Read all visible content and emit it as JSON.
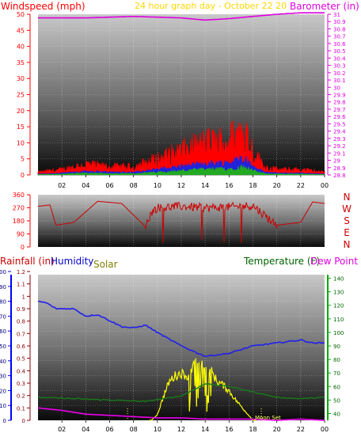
{
  "colors": {
    "windspeed": "#ff0000",
    "title": "#ffd700",
    "barometer": "#dd00dd",
    "direction": "#cc0000",
    "rainfall": "#cc0000",
    "humidity": "#0000cc",
    "solar": "#808000",
    "temperature": "#006400",
    "dewpoint": "#dd00dd",
    "solar_trace": "#ffff00",
    "humidity_trace": "#2020ee",
    "temp_trace": "#1a7a1a",
    "dew_trace": "#ee00ee",
    "axis_blue": "#0000ff",
    "axis_green": "#00aa00",
    "tick": "#000000"
  },
  "header": {
    "wind_label": "Windspeed (mph)",
    "title": "24 hour graph day - October 22 20",
    "baro_label": "Barometer (in)"
  },
  "chart_data": [
    {
      "type": "line",
      "name": "wind-barometer",
      "x_tick_labels": [
        "02",
        "04",
        "06",
        "08",
        "10",
        "12",
        "14",
        "16",
        "18",
        "20",
        "22",
        "00"
      ],
      "y_left_ticks": [
        "0",
        "5",
        "10",
        "15",
        "20",
        "25",
        "30",
        "35",
        "40",
        "45",
        "50"
      ],
      "y_right_ticks": [
        "28.8",
        "28.9",
        "29",
        "29.1",
        "29.2",
        "29.3",
        "29.4",
        "29.5",
        "29.6",
        "29.7",
        "29.8",
        "29.9",
        "30",
        "30.1",
        "30.2",
        "30.3",
        "30.4",
        "30.5",
        "30.6",
        "30.7",
        "30.8",
        "30.9",
        "31"
      ],
      "ylim_left": [
        0,
        50
      ],
      "ylim_right": [
        28.8,
        31.0
      ],
      "barometer": {
        "hours": [
          0,
          4,
          8,
          12,
          14,
          16,
          18,
          20,
          22,
          24
        ],
        "values": [
          30.95,
          30.95,
          30.97,
          30.95,
          30.92,
          30.94,
          30.97,
          31.0,
          31.02,
          31.02
        ]
      },
      "windspeed_envelope": {
        "hours": [
          0,
          2,
          4,
          6,
          8,
          10,
          12,
          14,
          16,
          17.3,
          18,
          19,
          20,
          22,
          24
        ],
        "values": [
          1,
          2,
          4,
          3,
          3,
          6,
          9,
          12,
          13,
          18,
          9,
          3,
          2,
          2,
          1
        ]
      }
    },
    {
      "type": "line",
      "name": "wind-direction",
      "y_left_ticks": [
        "0",
        "90",
        "180",
        "270",
        "360"
      ],
      "y_right_labels": [
        "N",
        "W",
        "S",
        "E",
        "N"
      ],
      "ylim": [
        0,
        360
      ],
      "direction": {
        "hours": [
          0,
          1,
          1.5,
          3,
          5,
          7,
          9,
          9.5,
          10,
          12,
          14,
          16,
          18,
          20,
          21,
          22,
          23,
          24
        ],
        "values": [
          280,
          290,
          150,
          170,
          315,
          300,
          140,
          240,
          270,
          280,
          270,
          275,
          285,
          150,
          160,
          170,
          310,
          300
        ]
      }
    },
    {
      "type": "line",
      "name": "rain-humidity-temperature",
      "labels": {
        "rainfall": "Rainfall (in)",
        "humidity": "Humidity",
        "solar": "Solar",
        "temperature": "Temperature (F)",
        "dewpoint": "Dew Point ("
      },
      "rain_ticks": [
        "0",
        "0.1",
        "0.2",
        "0.3",
        "0.4",
        "0.5",
        "0.6",
        "0.7",
        "0.8",
        "0.9",
        "1",
        "1.1",
        "1.2"
      ],
      "humidity_ticks": [
        "0",
        "10",
        "20",
        "30",
        "40",
        "50",
        "60",
        "70",
        "80",
        "90",
        "100"
      ],
      "temp_ticks": [
        "40",
        "50",
        "60",
        "70",
        "80",
        "90",
        "100",
        "110",
        "120",
        "130",
        "140"
      ],
      "annotation": "Moon Set",
      "humidity": {
        "hours": [
          0,
          0.7,
          1.5,
          3,
          4,
          5,
          6,
          7,
          8,
          9,
          10,
          12,
          14,
          16,
          18,
          20,
          22,
          23,
          24
        ],
        "values": [
          80,
          79,
          75,
          75,
          70,
          71,
          67,
          63,
          62,
          64,
          59,
          50,
          43,
          45,
          50,
          52,
          54,
          52,
          52
        ]
      },
      "temperature": {
        "hours": [
          0,
          3,
          6,
          9,
          12,
          14,
          16,
          18,
          20,
          22,
          24
        ],
        "values": [
          52,
          51,
          50,
          49,
          53,
          62,
          60,
          56,
          52,
          51,
          52
        ]
      },
      "dewpoint": {
        "hours": [
          0,
          2,
          4,
          6,
          8,
          10,
          12,
          14,
          16,
          18,
          20,
          22,
          24
        ],
        "values": [
          0.1,
          0.08,
          0.05,
          0.04,
          0.03,
          0.02,
          0.02,
          0.01,
          0.01,
          0.01,
          0.0,
          0.01,
          0.0
        ]
      },
      "solar": {
        "hours": [
          9.5,
          10,
          10.5,
          11,
          11.5,
          12,
          12.5,
          13,
          13.5,
          14,
          14.5,
          15,
          15.5,
          16,
          16.5,
          17,
          17.5,
          18
        ],
        "values": [
          0.0,
          0.05,
          0.2,
          0.33,
          0.38,
          0.4,
          0.38,
          0.45,
          0.52,
          0.45,
          0.42,
          0.33,
          0.3,
          0.25,
          0.18,
          0.12,
          0.06,
          0.0
        ]
      }
    }
  ]
}
